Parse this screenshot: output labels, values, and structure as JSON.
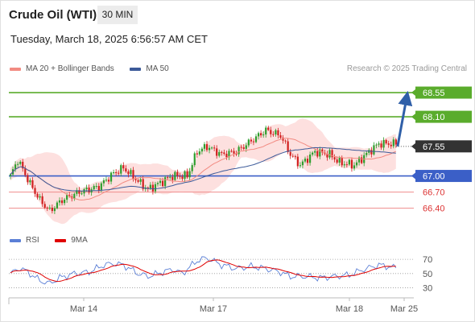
{
  "header": {
    "instrument": "Crude Oil (WTI)",
    "timeframe": "30 MIN",
    "timestamp": "Tuesday, March 18, 2025 6:56:57 AM CET",
    "credit": "Research © 2025 Trading Central"
  },
  "legend": {
    "ma20_bb": {
      "label": "MA 20 + Bollinger Bands",
      "color": "#f28b82"
    },
    "ma50": {
      "label": "MA 50",
      "color": "#3c5a99"
    }
  },
  "rsi_legend": {
    "rsi": {
      "label": "RSI",
      "color": "#5b7fd6"
    },
    "ma9": {
      "label": "9MA",
      "color": "#e00000"
    }
  },
  "colors": {
    "bull": "#2e9e2e",
    "bear": "#d11f1f",
    "resistance": "#5aac2c",
    "support": "#3b5fc7",
    "weak_support": "#ef8b8b",
    "current": "#333333",
    "arrow": "#2f5fa8",
    "bands": "#fde0df"
  },
  "chart_data": {
    "type": "candlestick",
    "price_axis": {
      "ylim": [
        66.05,
        68.85
      ]
    },
    "levels": [
      {
        "value": 68.55,
        "label": "68.55",
        "kind": "resistance"
      },
      {
        "value": 68.1,
        "label": "68.10",
        "kind": "resistance"
      },
      {
        "value": 67.55,
        "label": "67.55",
        "kind": "current"
      },
      {
        "value": 67.0,
        "label": "67.00",
        "kind": "support"
      },
      {
        "value": 66.7,
        "label": "66.70",
        "kind": "weak_support"
      },
      {
        "value": 66.4,
        "label": "66.40",
        "kind": "weak_support"
      }
    ],
    "x_ticks": [
      "Mar 14",
      "Mar 17",
      "Mar 18",
      "Mar 25"
    ],
    "close_keys": [
      [
        0,
        67.0
      ],
      [
        3,
        67.3
      ],
      [
        8,
        66.85
      ],
      [
        12,
        66.55
      ],
      [
        16,
        66.35
      ],
      [
        21,
        66.55
      ],
      [
        28,
        66.7
      ],
      [
        36,
        66.8
      ],
      [
        42,
        67.05
      ],
      [
        46,
        67.15
      ],
      [
        52,
        66.9
      ],
      [
        56,
        66.75
      ],
      [
        62,
        66.9
      ],
      [
        66,
        67.0
      ],
      [
        72,
        67.0
      ],
      [
        76,
        67.45
      ],
      [
        80,
        67.55
      ],
      [
        86,
        67.4
      ],
      [
        92,
        67.45
      ],
      [
        98,
        67.65
      ],
      [
        104,
        67.85
      ],
      [
        110,
        67.75
      ],
      [
        114,
        67.4
      ],
      [
        118,
        67.2
      ],
      [
        124,
        67.45
      ],
      [
        130,
        67.4
      ],
      [
        134,
        67.25
      ],
      [
        140,
        67.2
      ],
      [
        146,
        67.45
      ],
      [
        150,
        67.6
      ],
      [
        157,
        67.6
      ]
    ],
    "projection": {
      "from": 67.55,
      "to": 68.45
    },
    "rsi": {
      "levels": [
        70,
        50,
        30
      ],
      "ylim": [
        25,
        78
      ],
      "keys": [
        [
          0,
          50
        ],
        [
          4,
          58
        ],
        [
          8,
          50
        ],
        [
          12,
          40
        ],
        [
          16,
          36
        ],
        [
          20,
          44
        ],
        [
          26,
          50
        ],
        [
          32,
          52
        ],
        [
          38,
          62
        ],
        [
          42,
          64
        ],
        [
          46,
          62
        ],
        [
          52,
          50
        ],
        [
          56,
          46
        ],
        [
          62,
          52
        ],
        [
          66,
          56
        ],
        [
          70,
          50
        ],
        [
          76,
          68
        ],
        [
          80,
          72
        ],
        [
          86,
          62
        ],
        [
          92,
          57
        ],
        [
          98,
          60
        ],
        [
          104,
          57
        ],
        [
          110,
          52
        ],
        [
          114,
          46
        ],
        [
          120,
          46
        ],
        [
          126,
          44
        ],
        [
          132,
          46
        ],
        [
          138,
          48
        ],
        [
          144,
          56
        ],
        [
          150,
          62
        ],
        [
          157,
          58
        ]
      ]
    }
  }
}
